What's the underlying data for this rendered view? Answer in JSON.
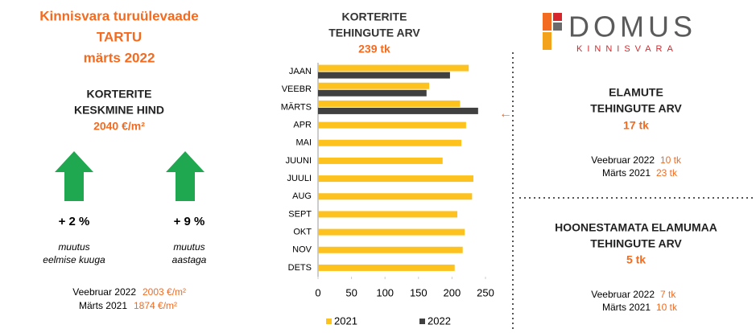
{
  "left": {
    "title": [
      "Kinnisvara turuülevaade",
      "TARTU",
      "märts 2022"
    ],
    "heading": [
      "KORTERITE",
      "KESKMINE HIND"
    ],
    "price": "2040 €/m²",
    "changes": [
      {
        "value": "+ 2 %",
        "text": [
          "muutus",
          "eelmise kuuga"
        ]
      },
      {
        "value": "+ 9 %",
        "text": [
          "muutus",
          "aastaga"
        ]
      }
    ],
    "comparisons": [
      {
        "label": "Veebruar 2022",
        "value": "2003 €/m²"
      },
      {
        "label": "Märts 2021",
        "value": "1874 €/m²"
      }
    ]
  },
  "chart_data": {
    "type": "hbar",
    "title": [
      "KORTERITE",
      "TEHINGUTE ARV"
    ],
    "subtitle": "239 tk",
    "annotation": "←",
    "categories": [
      "JAAN",
      "VEEBR",
      "MÄRTS",
      "APR",
      "MAI",
      "JUUNI",
      "JUULI",
      "AUG",
      "SEPT",
      "OKT",
      "NOV",
      "DETS"
    ],
    "series": [
      {
        "name": "2021",
        "color": "#fdc21e",
        "values": [
          225,
          166,
          212,
          221,
          214,
          186,
          232,
          230,
          208,
          219,
          216,
          204
        ]
      },
      {
        "name": "2022",
        "color": "#404040",
        "values": [
          197,
          162,
          239,
          null,
          null,
          null,
          null,
          null,
          null,
          null,
          null,
          null
        ]
      }
    ],
    "xlim": [
      0,
      250
    ],
    "xticks": [
      0,
      50,
      100,
      150,
      200,
      250
    ],
    "grid": false,
    "legend": "bottom"
  },
  "logo": {
    "name": "DOMUS",
    "sub": "KINNISVARA"
  },
  "right": {
    "blocks": [
      {
        "heading": [
          "ELAMUTE",
          "TEHINGUTE ARV"
        ],
        "value": "17 tk",
        "comparisons": [
          {
            "label": "Veebruar 2022",
            "value": "10 tk"
          },
          {
            "label": "Märts 2021",
            "value": "23 tk"
          }
        ]
      },
      {
        "heading": [
          "HOONESTAMATA ELAMUMAA",
          "TEHINGUTE ARV"
        ],
        "value": "5 tk",
        "comparisons": [
          {
            "label": "Veebruar 2022",
            "value": "7 tk"
          },
          {
            "label": "Märts 2021",
            "value": "10 tk"
          }
        ]
      }
    ]
  }
}
